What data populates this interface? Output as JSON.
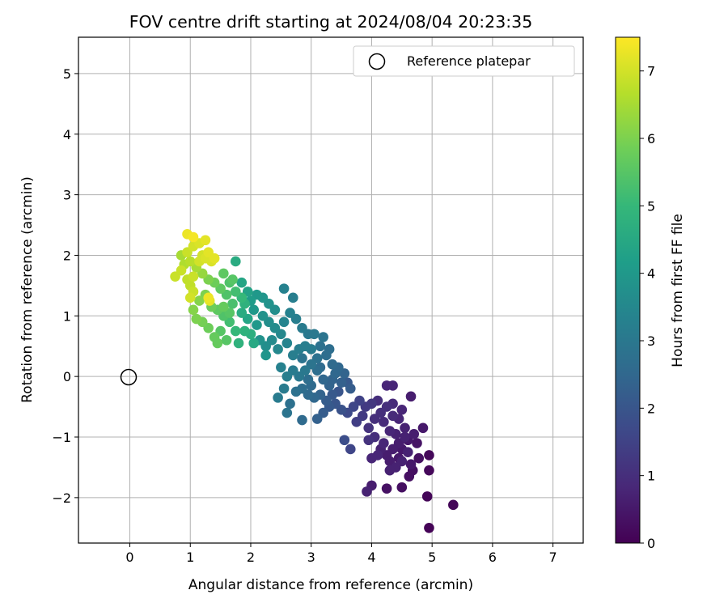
{
  "chart_data": {
    "type": "scatter",
    "title": "FOV centre drift starting at 2024/08/04 20:23:35",
    "xlabel": "Angular distance from reference (arcmin)",
    "ylabel": "Rotation from reference (arcmin)",
    "xlim": [
      -0.85,
      7.5
    ],
    "ylim": [
      -2.75,
      5.6
    ],
    "xticks": [
      "0",
      "1",
      "2",
      "3",
      "4",
      "5",
      "6",
      "7"
    ],
    "yticks": [
      "−2",
      "−1",
      "0",
      "1",
      "2",
      "3",
      "4",
      "5"
    ],
    "grid": true,
    "legend": {
      "position": "top-right",
      "entries": [
        "Reference platepar"
      ]
    },
    "reference_point": {
      "x": 0,
      "y": 0,
      "marker": "open-circle",
      "color": "#000000"
    },
    "colorbar": {
      "label": "Hours from first FF file",
      "range": [
        0,
        7.5
      ],
      "ticks": [
        "0",
        "1",
        "2",
        "3",
        "4",
        "5",
        "6",
        "7"
      ],
      "colormap": "viridis"
    },
    "colormap_stops": [
      "#440154",
      "#482878",
      "#3e4989",
      "#31688e",
      "#26828e",
      "#1f9e89",
      "#35b779",
      "#6ece58",
      "#b5de2b",
      "#fde725"
    ],
    "series": [
      {
        "points": [
          [
            4.95,
            -2.5,
            0.05
          ],
          [
            5.35,
            -2.12,
            0.1
          ],
          [
            4.92,
            -1.98,
            0.1
          ],
          [
            4.95,
            -1.55,
            0.15
          ],
          [
            4.95,
            -1.3,
            0.15
          ],
          [
            4.5,
            -1.83,
            0.3
          ],
          [
            4.25,
            -1.85,
            0.35
          ],
          [
            4.0,
            -1.8,
            0.6
          ],
          [
            3.92,
            -1.9,
            0.7
          ],
          [
            4.62,
            -1.65,
            0.3
          ],
          [
            4.68,
            -1.55,
            0.3
          ],
          [
            4.78,
            -1.35,
            0.3
          ],
          [
            4.75,
            -1.1,
            0.4
          ],
          [
            4.85,
            -0.85,
            0.5
          ],
          [
            4.65,
            -0.33,
            0.6
          ],
          [
            4.35,
            -0.15,
            0.8
          ],
          [
            4.25,
            -0.15,
            0.8
          ],
          [
            3.55,
            -1.05,
            1.8
          ],
          [
            3.65,
            -1.2,
            1.6
          ],
          [
            3.6,
            -0.1,
            2.1
          ],
          [
            4.5,
            -0.55,
            0.8
          ],
          [
            4.45,
            -0.7,
            0.8
          ],
          [
            4.3,
            -0.9,
            0.8
          ],
          [
            4.2,
            -1.1,
            0.8
          ],
          [
            4.1,
            -1.3,
            0.8
          ],
          [
            4.0,
            -1.35,
            0.8
          ],
          [
            4.55,
            -1.0,
            0.7
          ],
          [
            4.6,
            -1.25,
            0.7
          ],
          [
            4.5,
            -1.4,
            0.7
          ],
          [
            4.4,
            -1.5,
            0.7
          ],
          [
            4.3,
            -1.55,
            0.7
          ],
          [
            4.65,
            -1.45,
            0.5
          ],
          [
            4.7,
            -0.95,
            0.6
          ],
          [
            4.15,
            -0.6,
            1.0
          ],
          [
            4.05,
            -0.7,
            1.0
          ],
          [
            3.95,
            -0.85,
            1.1
          ],
          [
            4.25,
            -0.5,
            1.0
          ],
          [
            4.35,
            -0.45,
            0.9
          ],
          [
            3.85,
            -0.65,
            1.3
          ],
          [
            3.75,
            -0.75,
            1.4
          ],
          [
            4.0,
            -0.45,
            1.2
          ],
          [
            3.9,
            -0.5,
            1.3
          ],
          [
            4.45,
            -1.1,
            0.6
          ],
          [
            4.35,
            -1.2,
            0.6
          ],
          [
            4.25,
            -1.3,
            0.6
          ],
          [
            4.55,
            -0.85,
            0.7
          ],
          [
            4.4,
            -0.95,
            0.7
          ],
          [
            3.7,
            -0.5,
            1.6
          ],
          [
            3.6,
            -0.6,
            1.7
          ],
          [
            3.8,
            -0.4,
            1.5
          ],
          [
            3.5,
            -0.55,
            1.9
          ],
          [
            3.4,
            -0.45,
            2.0
          ],
          [
            3.3,
            -0.5,
            2.1
          ],
          [
            3.2,
            -0.6,
            2.2
          ],
          [
            3.1,
            -0.7,
            2.3
          ],
          [
            3.25,
            -0.4,
            2.2
          ],
          [
            3.35,
            -0.3,
            2.1
          ],
          [
            3.45,
            -0.25,
            2.0
          ],
          [
            3.15,
            -0.3,
            2.4
          ],
          [
            3.05,
            -0.35,
            2.5
          ],
          [
            2.95,
            -0.3,
            2.6
          ],
          [
            2.85,
            -0.2,
            2.7
          ],
          [
            2.75,
            -0.25,
            2.8
          ],
          [
            2.65,
            -0.45,
            2.8
          ],
          [
            2.6,
            -0.6,
            2.9
          ],
          [
            2.85,
            -0.72,
            2.6
          ],
          [
            3.0,
            -0.15,
            2.6
          ],
          [
            3.2,
            -0.05,
            2.5
          ],
          [
            3.4,
            0.05,
            2.5
          ],
          [
            3.35,
            0.2,
            2.6
          ],
          [
            3.25,
            0.35,
            2.7
          ],
          [
            3.15,
            0.5,
            2.8
          ],
          [
            3.2,
            0.65,
            2.9
          ],
          [
            3.05,
            0.7,
            3.0
          ],
          [
            3.3,
            0.45,
            2.7
          ],
          [
            3.1,
            0.3,
            2.8
          ],
          [
            3.0,
            0.2,
            2.9
          ],
          [
            2.9,
            0.1,
            3.0
          ],
          [
            2.8,
            0.0,
            3.0
          ],
          [
            2.7,
            0.1,
            3.1
          ],
          [
            2.6,
            0.0,
            3.2
          ],
          [
            2.5,
            0.15,
            3.3
          ],
          [
            2.55,
            -0.2,
            3.1
          ],
          [
            2.45,
            -0.35,
            3.1
          ],
          [
            2.7,
            0.35,
            3.2
          ],
          [
            2.8,
            0.45,
            3.2
          ],
          [
            2.9,
            0.5,
            3.2
          ],
          [
            3.0,
            0.45,
            3.1
          ],
          [
            2.6,
            0.55,
            3.4
          ],
          [
            2.5,
            0.7,
            3.5
          ],
          [
            2.4,
            0.8,
            3.6
          ],
          [
            2.3,
            0.9,
            3.7
          ],
          [
            2.2,
            1.0,
            3.8
          ],
          [
            2.35,
            0.6,
            3.6
          ],
          [
            2.25,
            0.5,
            3.7
          ],
          [
            2.15,
            0.6,
            3.8
          ],
          [
            2.45,
            0.45,
            3.5
          ],
          [
            2.55,
            0.9,
            3.4
          ],
          [
            2.65,
            1.05,
            3.3
          ],
          [
            2.75,
            0.95,
            3.2
          ],
          [
            2.7,
            1.3,
            3.2
          ],
          [
            2.55,
            1.45,
            3.3
          ],
          [
            2.85,
            0.8,
            3.1
          ],
          [
            2.95,
            0.7,
            3.0
          ],
          [
            2.05,
            1.1,
            4.0
          ],
          [
            2.0,
            1.25,
            4.1
          ],
          [
            2.1,
            1.35,
            4.0
          ],
          [
            2.2,
            1.3,
            3.9
          ],
          [
            2.3,
            1.2,
            3.8
          ],
          [
            2.4,
            1.1,
            3.7
          ],
          [
            1.95,
            1.4,
            4.3
          ],
          [
            1.85,
            1.55,
            4.4
          ],
          [
            1.75,
            1.9,
            4.6
          ],
          [
            2.25,
            0.35,
            3.9
          ],
          [
            2.1,
            0.85,
            4.0
          ],
          [
            1.95,
            0.95,
            4.4
          ],
          [
            1.85,
            1.05,
            4.6
          ],
          [
            1.8,
            0.55,
            4.8
          ],
          [
            1.75,
            0.75,
            5.0
          ],
          [
            1.65,
            0.9,
            5.2
          ],
          [
            1.55,
            1.0,
            5.4
          ],
          [
            1.45,
            1.1,
            5.6
          ],
          [
            1.35,
            1.15,
            5.8
          ],
          [
            1.5,
            0.75,
            5.5
          ],
          [
            1.4,
            0.65,
            5.7
          ],
          [
            1.3,
            0.8,
            5.8
          ],
          [
            1.2,
            0.9,
            5.9
          ],
          [
            1.1,
            0.95,
            6.0
          ],
          [
            1.05,
            1.1,
            6.1
          ],
          [
            1.15,
            1.25,
            6.1
          ],
          [
            1.25,
            1.35,
            6.0
          ],
          [
            1.45,
            0.55,
            5.7
          ],
          [
            1.6,
            0.6,
            5.5
          ],
          [
            1.7,
            1.2,
            5.3
          ],
          [
            1.6,
            1.35,
            5.4
          ],
          [
            1.5,
            1.45,
            5.6
          ],
          [
            1.4,
            1.55,
            5.8
          ],
          [
            1.3,
            1.6,
            6.0
          ],
          [
            1.55,
            1.7,
            5.6
          ],
          [
            1.65,
            1.55,
            5.4
          ],
          [
            1.75,
            1.4,
            5.2
          ],
          [
            1.2,
            1.7,
            6.3
          ],
          [
            1.1,
            1.8,
            6.5
          ],
          [
            1.0,
            1.9,
            6.7
          ],
          [
            0.95,
            2.05,
            6.9
          ],
          [
            1.05,
            2.15,
            7.0
          ],
          [
            1.15,
            2.2,
            7.1
          ],
          [
            1.25,
            2.25,
            7.2
          ],
          [
            0.95,
            2.35,
            7.3
          ],
          [
            1.05,
            2.3,
            7.4
          ],
          [
            0.75,
            1.65,
            6.9
          ],
          [
            0.85,
            1.75,
            6.9
          ],
          [
            0.95,
            1.6,
            6.8
          ],
          [
            1.0,
            1.5,
            6.8
          ],
          [
            1.05,
            1.65,
            6.9
          ],
          [
            1.15,
            1.9,
            7.0
          ],
          [
            1.25,
            1.95,
            7.1
          ],
          [
            1.3,
            2.05,
            7.2
          ],
          [
            1.35,
            1.9,
            7.1
          ],
          [
            1.2,
            2.0,
            7.0
          ],
          [
            1.0,
            1.3,
            7.0
          ],
          [
            1.05,
            1.4,
            6.9
          ],
          [
            1.3,
            1.3,
            7.3
          ],
          [
            1.32,
            1.25,
            7.2
          ],
          [
            1.4,
            1.95,
            7.2
          ],
          [
            0.85,
            2.0,
            6.5
          ],
          [
            0.9,
            1.85,
            6.6
          ],
          [
            1.55,
            1.15,
            5.7
          ],
          [
            1.65,
            1.05,
            5.5
          ],
          [
            1.7,
            1.6,
            5.5
          ],
          [
            1.85,
            1.3,
            5.0
          ],
          [
            1.9,
            1.2,
            4.8
          ],
          [
            2.05,
            0.55,
            4.5
          ],
          [
            1.9,
            0.75,
            4.8
          ],
          [
            2.0,
            0.7,
            4.7
          ],
          [
            3.55,
            0.05,
            2.4
          ],
          [
            3.45,
            0.15,
            2.5
          ],
          [
            3.65,
            -0.2,
            2.2
          ],
          [
            3.5,
            -0.1,
            2.3
          ],
          [
            3.3,
            -0.15,
            2.4
          ],
          [
            3.1,
            0.1,
            2.7
          ],
          [
            2.95,
            -0.05,
            2.7
          ],
          [
            2.85,
            0.3,
            2.9
          ],
          [
            3.15,
            0.15,
            2.6
          ],
          [
            3.35,
            -0.05,
            2.4
          ],
          [
            4.1,
            -0.4,
            1.0
          ],
          [
            4.2,
            -0.75,
            0.9
          ],
          [
            3.95,
            -1.05,
            1.1
          ],
          [
            4.05,
            -1.0,
            1.0
          ],
          [
            4.35,
            -0.65,
            0.9
          ],
          [
            4.5,
            -1.2,
            0.5
          ],
          [
            4.6,
            -1.05,
            0.5
          ],
          [
            4.45,
            -1.35,
            0.5
          ],
          [
            4.3,
            -1.4,
            0.6
          ],
          [
            4.15,
            -1.2,
            0.7
          ]
        ]
      }
    ]
  }
}
